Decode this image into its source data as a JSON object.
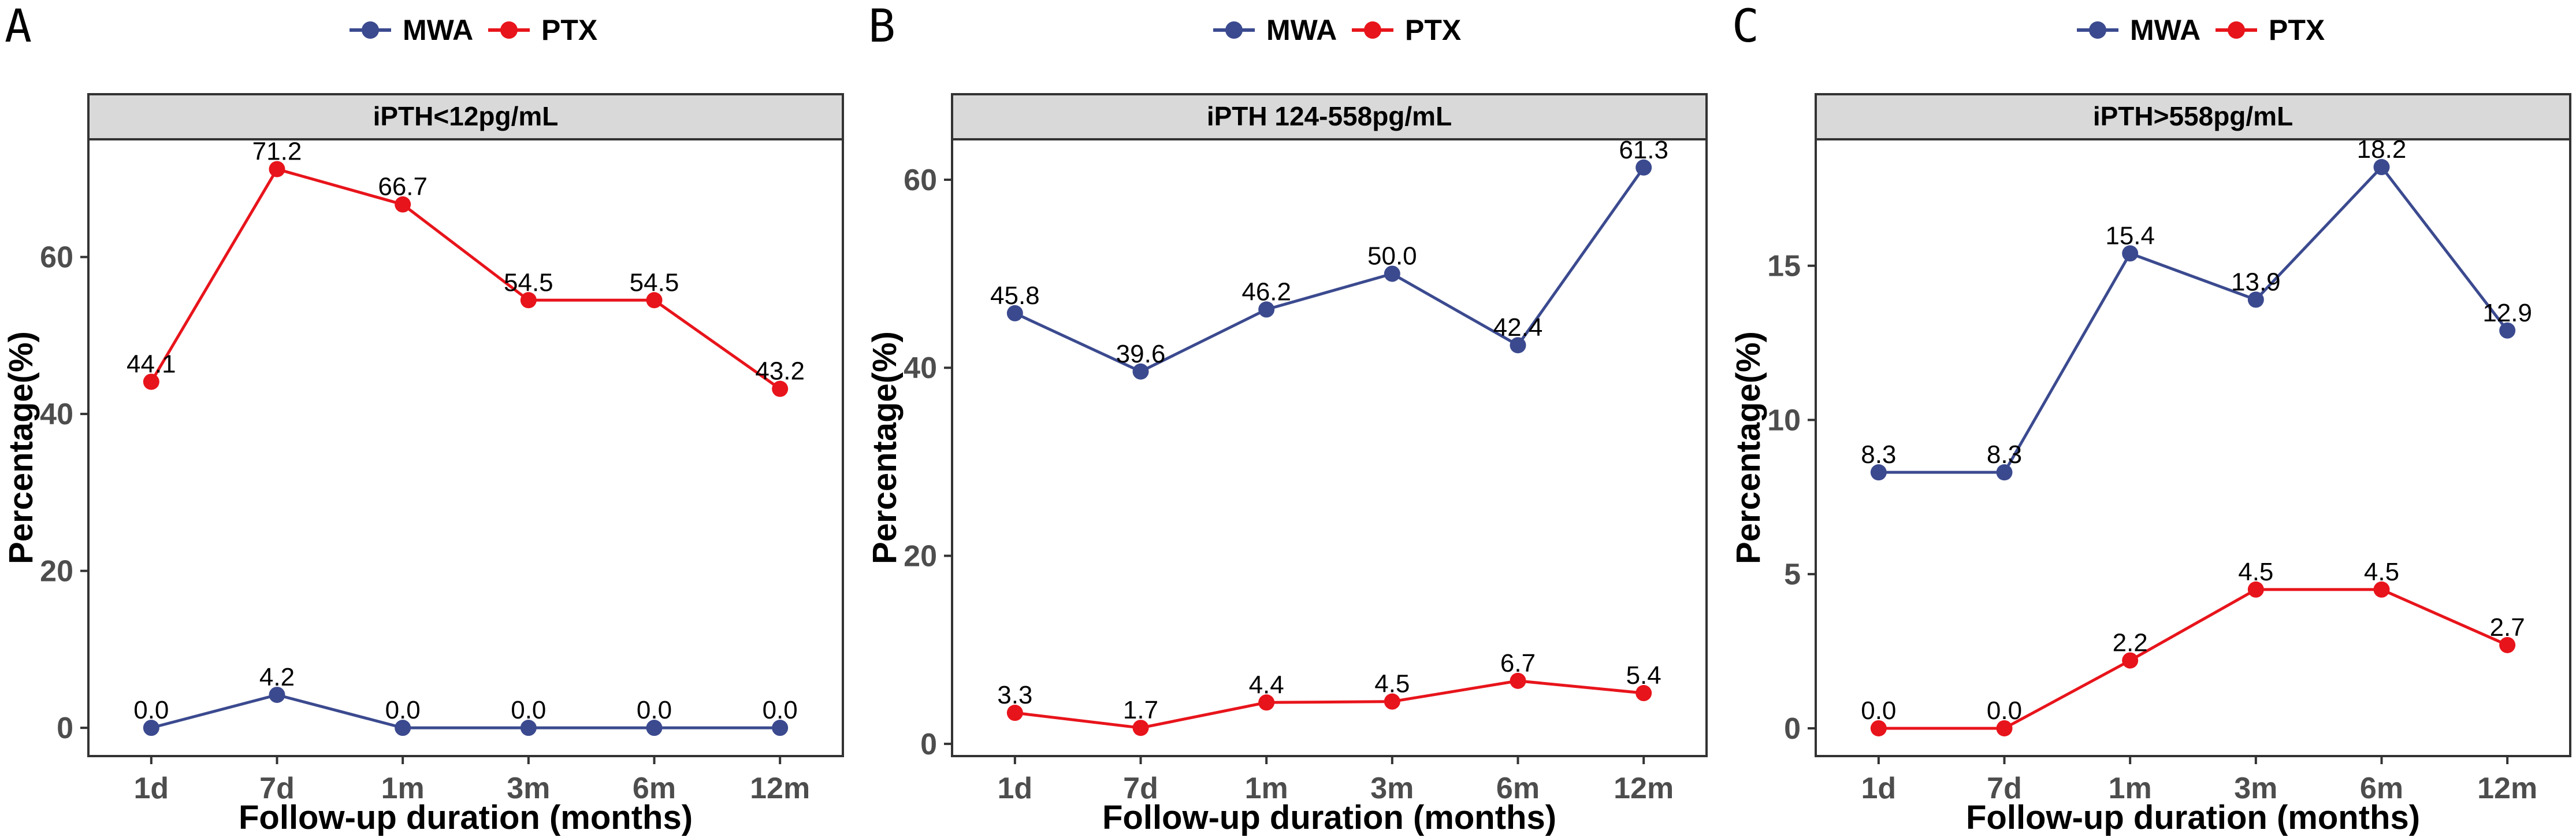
{
  "colors": {
    "MWA": "#3b4a8f",
    "PTX": "#e8141b",
    "strip_bg": "#d9d9d9",
    "tick": "#4d4d4d"
  },
  "legend": [
    {
      "key": "MWA",
      "label": "MWA"
    },
    {
      "key": "PTX",
      "label": "PTX"
    }
  ],
  "chart_data": [
    {
      "type": "line",
      "panel_label": "A",
      "title": "iPTH<12pg/mL",
      "xlabel": "Follow-up duration (months)",
      "ylabel": "Percentage(%)",
      "categories": [
        "1d",
        "7d",
        "1m",
        "3m",
        "6m",
        "12m"
      ],
      "ylim": [
        -3.6,
        75.0
      ],
      "yticks": [
        0,
        20,
        40,
        60
      ],
      "grid": false,
      "legend_position": "top",
      "series": [
        {
          "name": "MWA",
          "values": [
            0.0,
            4.2,
            0.0,
            0.0,
            0.0,
            0.0
          ],
          "labels": [
            "0.0",
            "4.2",
            "0.0",
            "0.0",
            "0.0",
            "0.0"
          ]
        },
        {
          "name": "PTX",
          "values": [
            44.1,
            71.2,
            66.7,
            54.5,
            54.5,
            43.2
          ],
          "labels": [
            "44.1",
            "71.2",
            "66.7",
            "54.5",
            "54.5",
            "43.2"
          ]
        }
      ]
    },
    {
      "type": "line",
      "panel_label": "B",
      "title": "iPTH 124-558pg/mL",
      "xlabel": "Follow-up duration (months)",
      "ylabel": "Percentage(%)",
      "categories": [
        "1d",
        "7d",
        "1m",
        "3m",
        "6m",
        "12m"
      ],
      "ylim": [
        -1.3,
        64.3
      ],
      "yticks": [
        0,
        20,
        40,
        60
      ],
      "grid": false,
      "legend_position": "top",
      "series": [
        {
          "name": "MWA",
          "values": [
            45.8,
            39.6,
            46.2,
            50.0,
            42.4,
            61.3
          ],
          "labels": [
            "45.8",
            "39.6",
            "46.2",
            "50.0",
            "42.4",
            "61.3"
          ]
        },
        {
          "name": "PTX",
          "values": [
            3.3,
            1.7,
            4.4,
            4.5,
            6.7,
            5.4
          ],
          "labels": [
            "3.3",
            "1.7",
            "4.4",
            "4.5",
            "6.7",
            "5.4"
          ]
        }
      ]
    },
    {
      "type": "line",
      "panel_label": "C",
      "title": "iPTH>558pg/mL",
      "xlabel": "Follow-up duration (months)",
      "ylabel": "Percentage(%)",
      "categories": [
        "1d",
        "7d",
        "1m",
        "3m",
        "6m",
        "12m"
      ],
      "ylim": [
        -0.9,
        19.1
      ],
      "yticks": [
        0,
        5,
        10,
        15
      ],
      "grid": false,
      "legend_position": "top",
      "series": [
        {
          "name": "MWA",
          "values": [
            8.3,
            8.3,
            15.4,
            13.9,
            18.2,
            12.9
          ],
          "labels": [
            "8.3",
            "8.3",
            "15.4",
            "13.9",
            "18.2",
            "12.9"
          ]
        },
        {
          "name": "PTX",
          "values": [
            0.0,
            0.0,
            2.2,
            4.5,
            4.5,
            2.7
          ],
          "labels": [
            "0.0",
            "0.0",
            "2.2",
            "4.5",
            "4.5",
            "2.7"
          ]
        }
      ]
    }
  ]
}
